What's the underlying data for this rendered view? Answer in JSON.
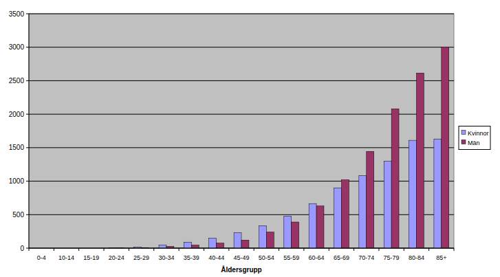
{
  "chart_data": {
    "type": "bar",
    "x_label": "Åldersgrupp",
    "categories": [
      "0-4",
      "10-14",
      "15-19",
      "20-24",
      "25-29",
      "30-34",
      "35-39",
      "40-44",
      "45-49",
      "50-54",
      "55-59",
      "60-64",
      "65-69",
      "70-74",
      "75-79",
      "80-84",
      "85+"
    ],
    "series": [
      {
        "name": "Kvinnor",
        "color": "#9999ff",
        "values": [
          0,
          0,
          0,
          5,
          15,
          45,
          90,
          150,
          230,
          335,
          480,
          665,
          900,
          1085,
          1300,
          1610,
          1630
        ]
      },
      {
        "name": "Män",
        "color": "#993366",
        "values": [
          0,
          0,
          0,
          5,
          8,
          25,
          45,
          75,
          120,
          240,
          390,
          630,
          1020,
          1445,
          2080,
          2615,
          3005
        ]
      }
    ],
    "ylim": [
      0,
      3500
    ],
    "yticks": [
      0,
      500,
      1000,
      1500,
      2000,
      2500,
      3000,
      3500
    ],
    "grid": true,
    "legend": "right"
  }
}
